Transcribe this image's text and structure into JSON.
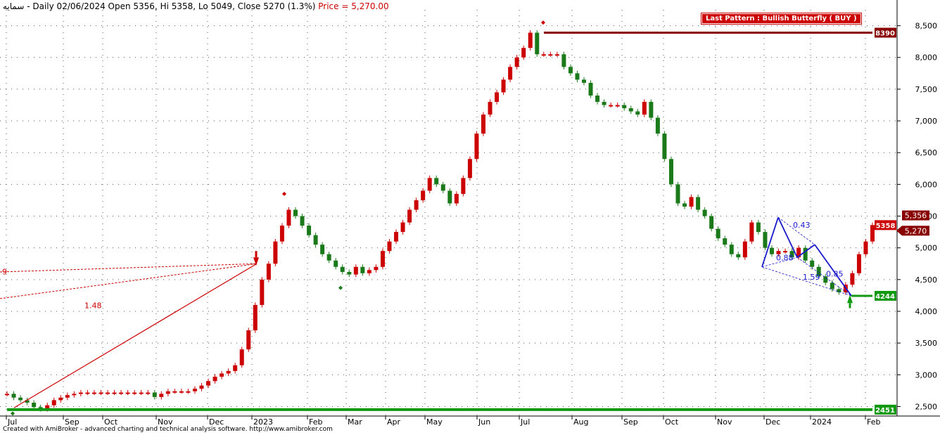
{
  "header": {
    "symbol": "سمایه",
    "text": " - Daily 02/06/2024 Open 5356, Hi 5358, Lo 5049, Close 5270 (1.3%)",
    "price_label": "Price = 5,270.00"
  },
  "footer": "Created with AmiBroker - advanced charting and technical analysis software. http://www.amibroker.com",
  "pattern_label": "Last Pattern : Bullish Butterfly ( BUY )",
  "colors": {
    "up": "#cc0000",
    "down": "#1a7a1a",
    "support": "#119911",
    "resistance": "#880000",
    "harmonic": "#1a1acc",
    "grid": "#555555"
  },
  "chart_data": {
    "type": "line",
    "title": "",
    "ylim": [
      2350,
      8750
    ],
    "y_ticks": [
      "2,500",
      "3,000",
      "3,500",
      "4,000",
      "4,500",
      "5,000",
      "5,500",
      "6,000",
      "6,500",
      "7,000",
      "7,500",
      "8,000",
      "8,500"
    ],
    "x_ticks": [
      "Jul",
      "Sep",
      "Oct",
      "Nov",
      "Dec",
      "2023",
      "Feb",
      "Mar",
      "Apr",
      "May",
      "Jun",
      "Jul",
      "Aug",
      "Sep",
      "Oct",
      "Nov",
      "Dec",
      "2024",
      "Feb"
    ],
    "levels": [
      {
        "label": "8390",
        "value": 8390
      },
      {
        "label": "4244",
        "value": 4244
      },
      {
        "label": "2451",
        "value": 2451
      }
    ],
    "last_labels": [
      {
        "label": "5358",
        "value": 5358
      },
      {
        "label": "5,270",
        "value": 5270
      },
      {
        "label": "5,356",
        "value": 5356
      }
    ],
    "fib_labels": [
      "1.48",
      "9",
      "0.43",
      "0.88",
      "1.59",
      "0.85"
    ],
    "series": [
      {
        "values": [
          2700,
          2640,
          2600,
          2560,
          2490,
          2460,
          2520,
          2600,
          2640,
          2680,
          2700,
          2720,
          2720,
          2720,
          2720,
          2720,
          2720,
          2720,
          2720,
          2720,
          2720,
          2720,
          2650,
          2700,
          2740,
          2740,
          2740,
          2740,
          2780,
          2830,
          2900,
          2970,
          3020,
          3060,
          3150,
          3400,
          3700,
          4100,
          4500,
          4750,
          5100,
          5350,
          5600,
          5500,
          5350,
          5200,
          5050,
          4900,
          4800,
          4700,
          4620,
          4580,
          4700,
          4600,
          4650,
          4700,
          4950,
          5100,
          5250,
          5400,
          5600,
          5750,
          5900,
          6100,
          6000,
          5900,
          5700,
          5850,
          6100,
          6400,
          6800,
          7100,
          7300,
          7450,
          7650,
          7850,
          8000,
          8150,
          8390,
          8050,
          8050,
          8050,
          8050,
          7850,
          7750,
          7650,
          7600,
          7400,
          7300,
          7250,
          7250,
          7250,
          7200,
          7150,
          7100,
          7300,
          7050,
          6800,
          6400,
          6000,
          5700,
          5650,
          5800,
          5600,
          5500,
          5300,
          5150,
          5050,
          4900,
          4850,
          5100,
          5400,
          5250,
          5000,
          4900,
          4950,
          4950,
          4850,
          5000,
          4800,
          4700,
          4550,
          4450,
          4350,
          4300,
          4420,
          4600,
          4900,
          5100,
          5358
        ]
      }
    ]
  }
}
